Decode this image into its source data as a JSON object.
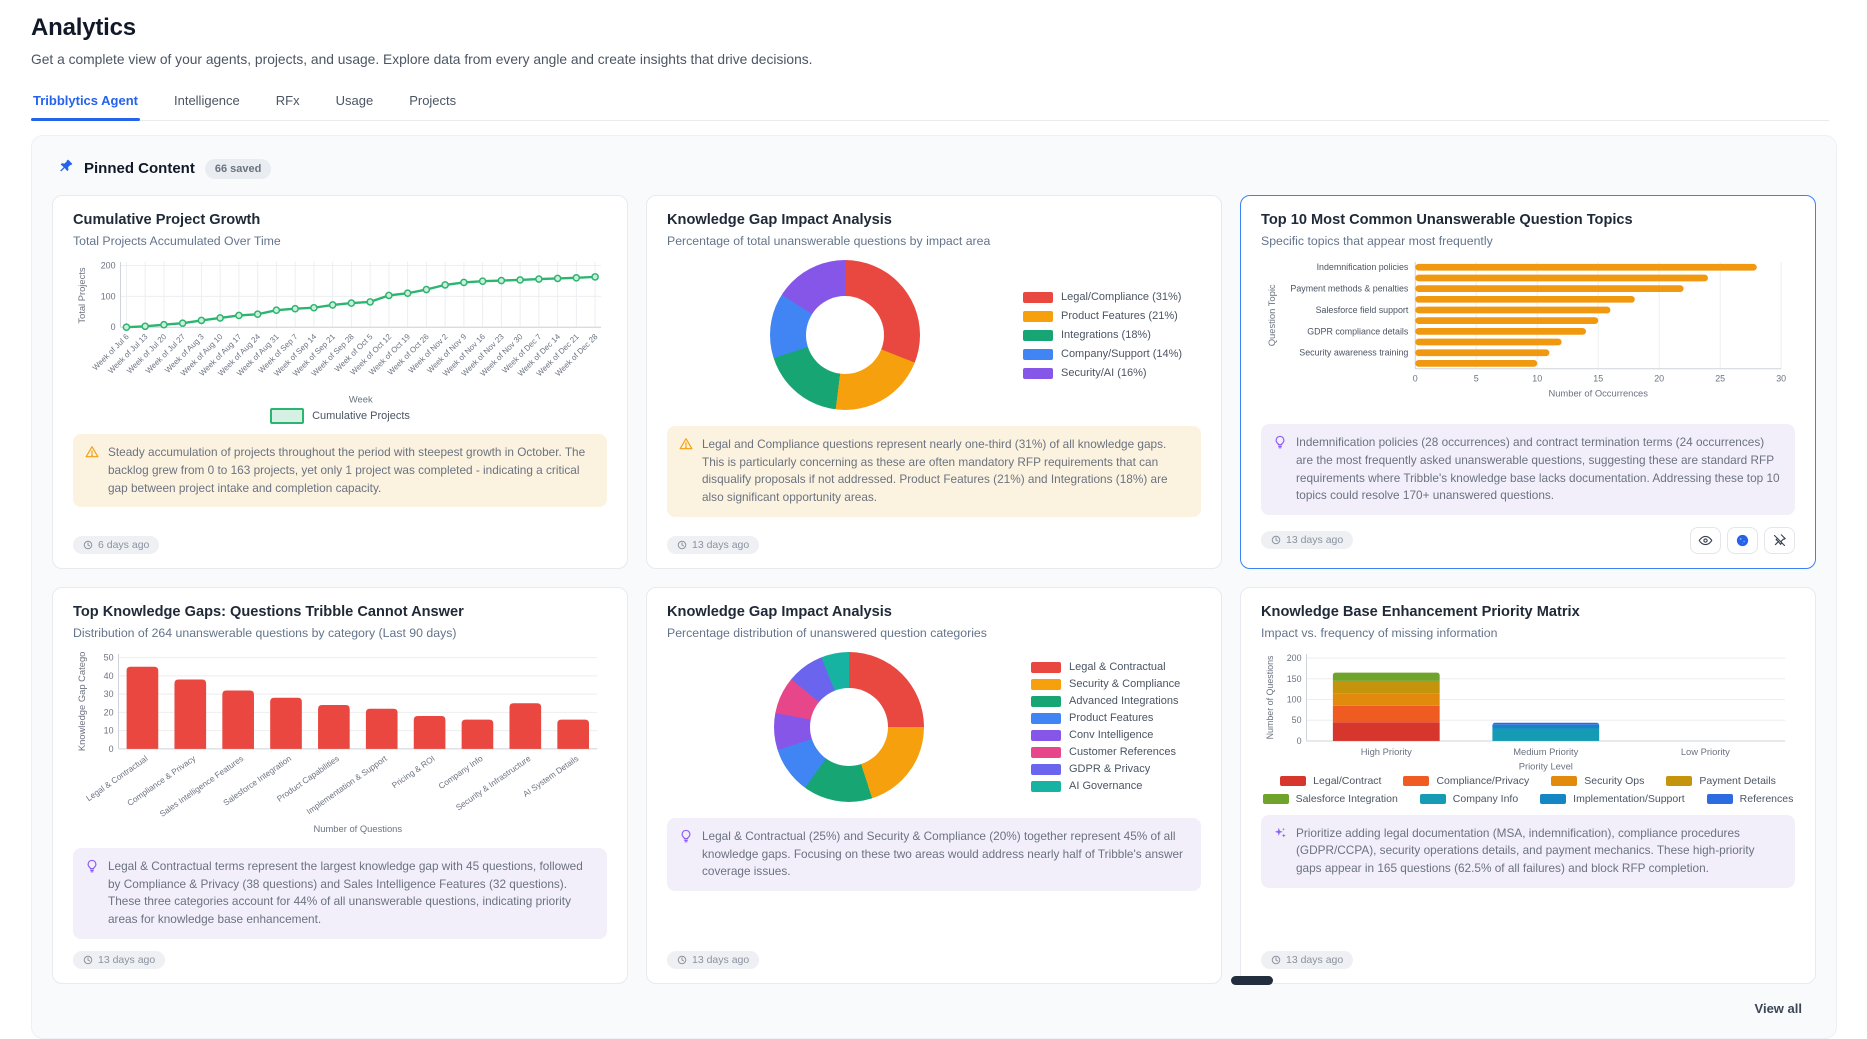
{
  "page": {
    "title": "Analytics",
    "subtitle": "Get a complete view of your agents, projects, and usage. Explore data from every angle and create insights that drive decisions."
  },
  "tabs": [
    "Tribblytics Agent",
    "Intelligence",
    "RFx",
    "Usage",
    "Projects"
  ],
  "pinned": {
    "title": "Pinned Content",
    "badge": "66 saved",
    "view_all": "View all"
  },
  "cards": [
    {
      "title": "Cumulative Project Growth",
      "subtitle": "Total Projects Accumulated Over Time",
      "insight": "Steady accumulation of projects throughout the period with steepest growth in October. The backlog grew from 0 to 163 projects, yet only 1 project was completed - indicating a critical gap between project intake and completion capacity.",
      "timestamp": "6 days ago"
    },
    {
      "title": "Knowledge Gap Impact Analysis",
      "subtitle": "Percentage of total unanswerable questions by impact area",
      "insight": "Legal and Compliance questions represent nearly one-third (31%) of all knowledge gaps. This is particularly concerning as these are often mandatory RFP requirements that can disqualify proposals if not addressed. Product Features (21%) and Integrations (18%) are also significant opportunity areas.",
      "timestamp": "13 days ago"
    },
    {
      "title": "Top 10 Most Common Unanswerable Question Topics",
      "subtitle": "Specific topics that appear most frequently",
      "insight": "Indemnification policies (28 occurrences) and contract termination terms (24 occurrences) are the most frequently asked unanswerable questions, suggesting these are standard RFP requirements where Tribble's knowledge base lacks documentation. Addressing these top 10 topics could resolve 170+ unanswered questions.",
      "timestamp": "13 days ago"
    },
    {
      "title": "Top Knowledge Gaps: Questions Tribble Cannot Answer",
      "subtitle": "Distribution of 264 unanswerable questions by category (Last 90 days)",
      "insight": "Legal & Contractual terms represent the largest knowledge gap with 45 questions, followed by Compliance & Privacy (38 questions) and Sales Intelligence Features (32 questions). These three categories account for 44% of all unanswerable questions, indicating priority areas for knowledge base enhancement.",
      "timestamp": "13 days ago"
    },
    {
      "title": "Knowledge Gap Impact Analysis",
      "subtitle": "Percentage distribution of unanswered question categories",
      "insight": "Legal & Contractual (25%) and Security & Compliance (20%) together represent 45% of all knowledge gaps. Focusing on these two areas would address nearly half of Tribble's answer coverage issues.",
      "timestamp": "13 days ago"
    },
    {
      "title": "Knowledge Base Enhancement Priority Matrix",
      "subtitle": "Impact vs. frequency of missing information",
      "insight": "Prioritize adding legal documentation (MSA, indemnification), compliance procedures (GDPR/CCPA), security operations details, and payment mechanics. These high-priority gaps appear in 165 questions (62.5% of all failures) and block RFP completion.",
      "timestamp": "13 days ago"
    }
  ],
  "chart_data": [
    {
      "id": "cumulative",
      "type": "line",
      "x": [
        "Week of Jul 6",
        "Week of Jul 13",
        "Week of Jul 20",
        "Week of Jul 27",
        "Week of Aug 3",
        "Week of Aug 10",
        "Week of Aug 17",
        "Week of Aug 24",
        "Week of Aug 31",
        "Week of Sep 7",
        "Week of Sep 14",
        "Week of Sep 21",
        "Week of Sep 28",
        "Week of Oct 5",
        "Week of Oct 12",
        "Week of Oct 19",
        "Week of Oct 26",
        "Week of Nov 2",
        "Week of Nov 9",
        "Week of Nov 16",
        "Week of Nov 23",
        "Week of Nov 30",
        "Week of Dec 7",
        "Week of Dec 14",
        "Week of Dec 21",
        "Week of Dec 28"
      ],
      "values": [
        0,
        3,
        8,
        13,
        22,
        30,
        38,
        42,
        55,
        60,
        63,
        72,
        78,
        82,
        103,
        110,
        122,
        137,
        145,
        149,
        151,
        153,
        156,
        158,
        160,
        163
      ],
      "xlabel": "Week",
      "ylabel": "Total Projects",
      "yticks": [
        0,
        100,
        200
      ],
      "ylim": [
        0,
        205
      ],
      "color": "#2cb471",
      "legend": "Cumulative Projects",
      "legend_fill": "#d6f1e3"
    },
    {
      "id": "impact1",
      "type": "donut",
      "labels": [
        "Legal/Compliance (31%)",
        "Product Features (21%)",
        "Integrations (18%)",
        "Company/Support (14%)",
        "Security/AI (16%)"
      ],
      "values": [
        31,
        21,
        18,
        14,
        16
      ],
      "colors": [
        "#e8483f",
        "#f5a00c",
        "#17a673",
        "#4184f3",
        "#8656e8"
      ]
    },
    {
      "id": "topics",
      "type": "hbar",
      "labels": [
        "Indemnification policies",
        "",
        "Payment methods & penalties",
        "",
        "Salesforce field support",
        "",
        "GDPR compliance details",
        "",
        "Security awareness training",
        ""
      ],
      "values": [
        28,
        24,
        22,
        18,
        16,
        15,
        14,
        12,
        11,
        10
      ],
      "xticks": [
        0,
        5,
        10,
        15,
        20,
        25,
        30
      ],
      "xmax": 30,
      "xlabel": "Number of Occurrences",
      "ylabel": "Question Topic",
      "color": "#f0980f"
    },
    {
      "id": "gaps",
      "type": "bar",
      "categories": [
        "Legal & Contractual",
        "Compliance & Privacy",
        "Sales Intelligence Features",
        "Salesforce Integration",
        "Product Capabilities",
        "Implementation & Support",
        "Pricing & ROI",
        "Company Info",
        "Security & Infrastructure",
        "AI System Details"
      ],
      "values": [
        45,
        38,
        32,
        28,
        24,
        22,
        18,
        16,
        25,
        16
      ],
      "yticks": [
        0,
        10,
        20,
        30,
        40,
        50
      ],
      "ymax": 52,
      "xlabel": "Number of Questions",
      "ylabel": "Knowledge Gap Catego",
      "color": "#e9473f"
    },
    {
      "id": "impact2",
      "type": "donut",
      "labels": [
        "Legal & Contractual",
        "Security & Compliance",
        "Advanced Integrations",
        "Product Features",
        "Conv Intelligence",
        "Customer References",
        "GDPR & Privacy",
        "AI Governance"
      ],
      "values": [
        25,
        20,
        15,
        10,
        8,
        8,
        8,
        6
      ],
      "colors": [
        "#e8483f",
        "#f5a00c",
        "#17a673",
        "#4184f3",
        "#8656e8",
        "#e8468b",
        "#6a64ee",
        "#16b3a3"
      ]
    },
    {
      "id": "matrix",
      "type": "stacked-bar",
      "categories": [
        "High Priority",
        "Medium Priority",
        "Low Priority"
      ],
      "series": [
        {
          "name": "Legal/Contract",
          "color": "#d7362c",
          "values": [
            45,
            0,
            0
          ]
        },
        {
          "name": "Compliance/Privacy",
          "color": "#f05b22",
          "values": [
            40,
            0,
            0
          ]
        },
        {
          "name": "Security Ops",
          "color": "#e18a0d",
          "values": [
            30,
            0,
            0
          ]
        },
        {
          "name": "Payment Details",
          "color": "#c4940c",
          "values": [
            30,
            0,
            0
          ]
        },
        {
          "name": "Salesforce Integration",
          "color": "#6fa32b",
          "values": [
            20,
            0,
            0
          ]
        },
        {
          "name": "Company Info",
          "color": "#169bb5",
          "values": [
            0,
            30,
            0
          ]
        },
        {
          "name": "Implementation/Support",
          "color": "#1486c4",
          "values": [
            0,
            9,
            0
          ]
        },
        {
          "name": "References",
          "color": "#2f6be0",
          "values": [
            0,
            5,
            0
          ]
        }
      ],
      "yticks": [
        0,
        50,
        100,
        150,
        200
      ],
      "ymax": 210,
      "xlabel": "Priority Level",
      "ylabel": "Number of Questions"
    }
  ]
}
